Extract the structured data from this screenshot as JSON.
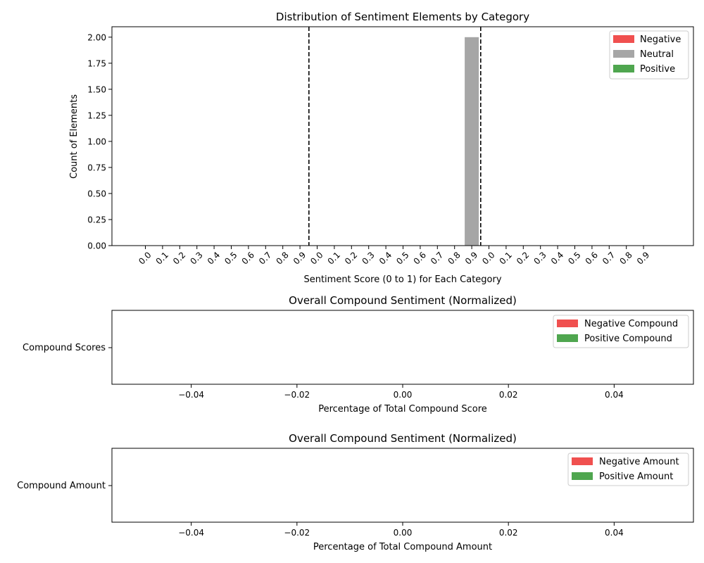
{
  "chart_data": [
    {
      "type": "bar",
      "title": "Distribution of Sentiment Elements by Category",
      "xlabel": "Sentiment Score (0 to 1) for Each Category",
      "ylabel": "Count of Elements",
      "ylim": [
        0,
        2.1
      ],
      "yticks": [
        "0.00",
        "0.25",
        "0.50",
        "0.75",
        "1.00",
        "1.25",
        "1.50",
        "1.75",
        "2.00"
      ],
      "categories": [
        "0.0",
        "0.1",
        "0.2",
        "0.3",
        "0.4",
        "0.5",
        "0.6",
        "0.7",
        "0.8",
        "0.9",
        "0.0",
        "0.1",
        "0.2",
        "0.3",
        "0.4",
        "0.5",
        "0.6",
        "0.7",
        "0.8",
        "0.9",
        "0.0",
        "0.1",
        "0.2",
        "0.3",
        "0.4",
        "0.5",
        "0.6",
        "0.7",
        "0.8",
        "0.9"
      ],
      "series": [
        {
          "name": "Negative",
          "color": "#f0504f",
          "values": [
            0,
            0,
            0,
            0,
            0,
            0,
            0,
            0,
            0,
            0,
            0,
            0,
            0,
            0,
            0,
            0,
            0,
            0,
            0,
            0,
            0,
            0,
            0,
            0,
            0,
            0,
            0,
            0,
            0,
            0
          ]
        },
        {
          "name": "Neutral",
          "color": "#a6a6a6",
          "values": [
            0,
            0,
            0,
            0,
            0,
            0,
            0,
            0,
            0,
            0,
            0,
            0,
            0,
            0,
            0,
            0,
            0,
            0,
            0,
            2,
            0,
            0,
            0,
            0,
            0,
            0,
            0,
            0,
            0,
            0
          ]
        },
        {
          "name": "Positive",
          "color": "#4fa64f",
          "values": [
            0,
            0,
            0,
            0,
            0,
            0,
            0,
            0,
            0,
            0,
            0,
            0,
            0,
            0,
            0,
            0,
            0,
            0,
            0,
            0,
            0,
            0,
            0,
            0,
            0,
            0,
            0,
            0,
            0,
            0
          ]
        }
      ],
      "separators_after_index": [
        9,
        19
      ],
      "legend": "top-right"
    },
    {
      "type": "bar",
      "orientation": "horizontal",
      "title": "Overall Compound Sentiment (Normalized)",
      "xlabel": "Percentage of Total Compound Score",
      "category_label": "Compound Scores",
      "xlim": [
        -0.055,
        0.055
      ],
      "xticks": [
        -0.04,
        -0.02,
        0.0,
        0.02,
        0.04
      ],
      "xtick_labels": [
        "−0.04",
        "−0.02",
        "0.00",
        "0.02",
        "0.04"
      ],
      "series": [
        {
          "name": "Negative Compound",
          "color": "#f0504f",
          "values": [
            0
          ]
        },
        {
          "name": "Positive Compound",
          "color": "#4fa64f",
          "values": [
            0
          ]
        }
      ],
      "legend": "top-right"
    },
    {
      "type": "bar",
      "orientation": "horizontal",
      "title": "Overall Compound Sentiment (Normalized)",
      "xlabel": "Percentage of Total Compound Amount",
      "category_label": "Compound Amount",
      "xlim": [
        -0.055,
        0.055
      ],
      "xticks": [
        -0.04,
        -0.02,
        0.0,
        0.02,
        0.04
      ],
      "xtick_labels": [
        "−0.04",
        "−0.02",
        "0.00",
        "0.02",
        "0.04"
      ],
      "series": [
        {
          "name": "Negative Amount",
          "color": "#f0504f",
          "values": [
            0
          ]
        },
        {
          "name": "Positive Amount",
          "color": "#4fa64f",
          "values": [
            0
          ]
        }
      ],
      "legend": "top-right"
    }
  ]
}
